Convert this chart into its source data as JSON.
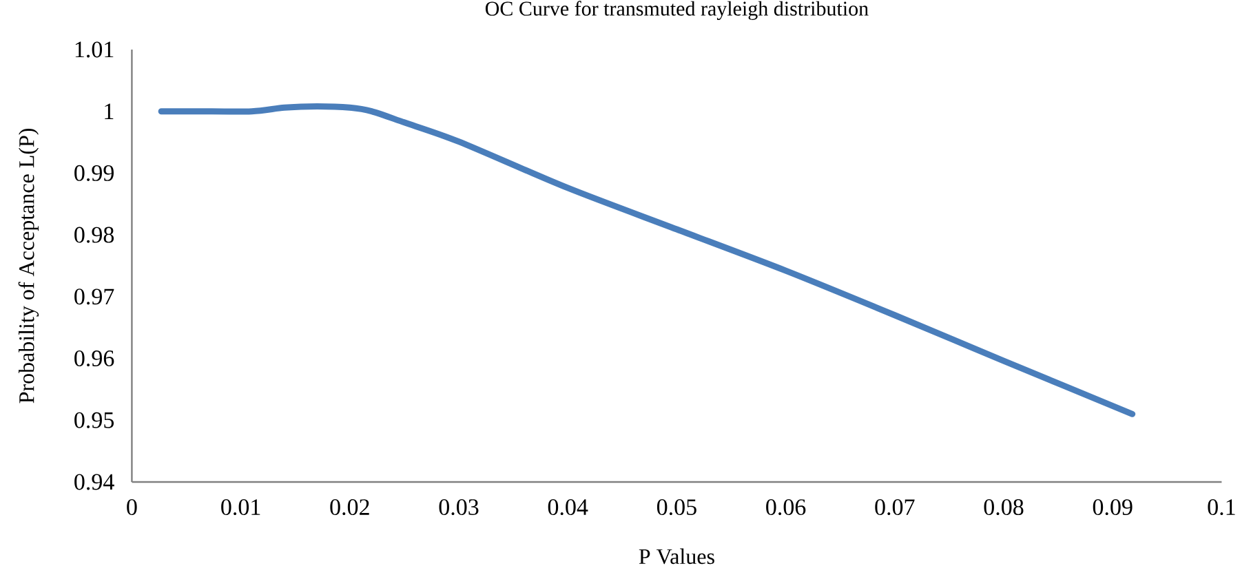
{
  "chart_data": {
    "type": "line",
    "title": "OC Curve for transmuted rayleigh distribution",
    "xlabel": "P Values",
    "ylabel": "Probability of Acceptance L(P)",
    "x": [
      0.0027,
      0.006,
      0.011,
      0.014,
      0.017,
      0.02,
      0.022,
      0.025,
      0.03,
      0.04,
      0.05,
      0.06,
      0.07,
      0.08,
      0.0918
    ],
    "series": [
      {
        "color": "#4a7ebb",
        "values": [
          1.0,
          1.0,
          1.0,
          1.0006,
          1.0008,
          1.0006,
          1.0,
          0.9982,
          0.9951,
          0.9876,
          0.9809,
          0.9742,
          0.967,
          0.9596,
          0.951
        ]
      }
    ],
    "xlim": [
      0,
      0.1
    ],
    "ylim": [
      0.94,
      1.01
    ],
    "xticks": [
      0,
      0.01,
      0.02,
      0.03,
      0.04,
      0.05,
      0.06,
      0.07,
      0.08,
      0.09,
      0.1
    ],
    "yticks": [
      0.94,
      0.95,
      0.96,
      0.97,
      0.98,
      0.99,
      1,
      1.01
    ],
    "marker": "none",
    "line_style": "solid"
  }
}
